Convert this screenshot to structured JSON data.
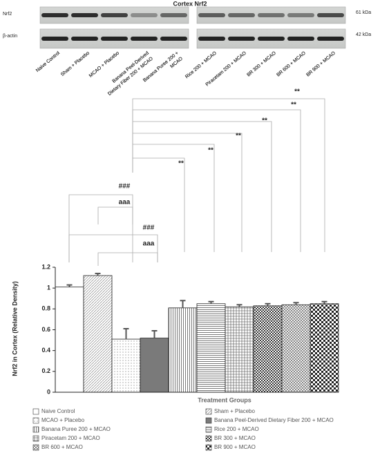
{
  "blot": {
    "title": "Cortex Nrf2",
    "rows": [
      "Nrf2",
      "β-actin"
    ],
    "sizes": [
      "61 kDa",
      "42 kDa"
    ],
    "lanes_left": [
      [
        "Naive Control"
      ],
      [
        "Sham + Placebo"
      ],
      [
        "MCAO + Placebo"
      ],
      [
        "Banana Peel-Derived",
        "Dietary Fiber 200 + MCAO"
      ],
      [
        "Banana Puree 200 +",
        "MCAO"
      ]
    ],
    "lanes_right": [
      [
        "Rice 200 + MCAO"
      ],
      [
        "Piracetam 200 + MCAO"
      ],
      [
        "BR 300 + MCAO"
      ],
      [
        "BR 600 + MCAO"
      ],
      [
        "BR 900 + MCAO"
      ]
    ]
  },
  "chart_data": {
    "type": "bar",
    "y_label": "Nrf2 in Cortex (Relative Density)",
    "x_label": "Treatment Groups",
    "categories": [
      "Naive Control",
      "Sham + Placebo",
      "MCAO + Placebo",
      "Banana Peel-Derived Dietary Fiber 200 + MCAO",
      "Banana Puree 200 + MCAO",
      "Rice 200 + MCAO",
      "Piracetam 200 + MCAO",
      "BR 300 + MCAO",
      "BR 600 + MCAO",
      "BR 900 + MCAO"
    ],
    "values": [
      1.01,
      1.12,
      0.51,
      0.52,
      0.81,
      0.85,
      0.82,
      0.83,
      0.84,
      0.85
    ],
    "errors": [
      0.02,
      0.02,
      0.1,
      0.07,
      0.07,
      0.02,
      0.02,
      0.02,
      0.02,
      0.02
    ],
    "patterns": [
      "none",
      "diagonal",
      "dots",
      "solid",
      "vertical",
      "horizontal",
      "grid",
      "fine-check",
      "cross",
      "check"
    ],
    "color": "#555555",
    "ylim": [
      0,
      1.2
    ],
    "yticks": [
      0,
      0.2,
      0.4,
      0.6,
      0.8,
      1,
      1.2
    ],
    "annotations": [
      "**",
      "**",
      "**",
      "**",
      "**",
      "**",
      "###",
      "aaa",
      "###",
      "aaa"
    ]
  }
}
